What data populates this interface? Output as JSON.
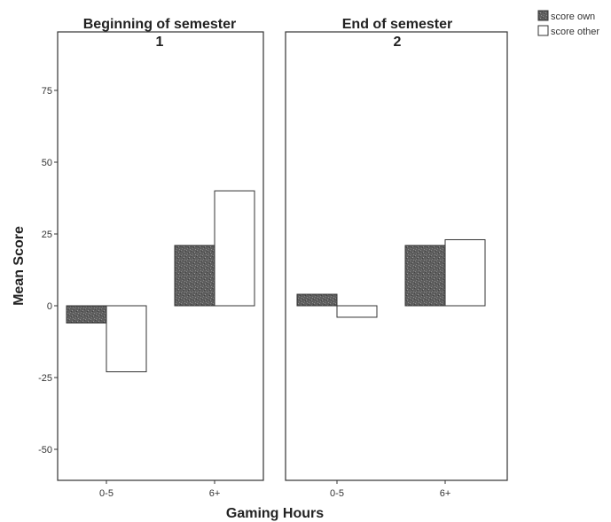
{
  "chart_data": {
    "type": "bar",
    "xlabel": "Gaming Hours",
    "ylabel": "Mean Score",
    "ylim": [
      -60,
      87
    ],
    "yticks": [
      75,
      50,
      25,
      0,
      -25,
      -50
    ],
    "ytick_labels": [
      "75",
      "50",
      "25",
      "0",
      "-25",
      "-50"
    ],
    "categories": [
      "0-5",
      "6+"
    ],
    "legend": {
      "placement": "top-right",
      "entries": [
        "score own",
        "score other"
      ]
    },
    "panels": [
      {
        "title": "Beginning of semester",
        "number": "1",
        "series": [
          {
            "name": "score own",
            "values": [
              -6,
              21
            ]
          },
          {
            "name": "score other",
            "values": [
              -23,
              40
            ]
          }
        ]
      },
      {
        "title": "End of semester",
        "number": "2",
        "series": [
          {
            "name": "score own",
            "values": [
              4,
              21
            ]
          },
          {
            "name": "score other",
            "values": [
              -4,
              23
            ]
          }
        ]
      }
    ],
    "colors": {
      "score own": "#6e6e6e",
      "score other": "#ffffff",
      "stroke": "#333333"
    },
    "grid": false
  }
}
